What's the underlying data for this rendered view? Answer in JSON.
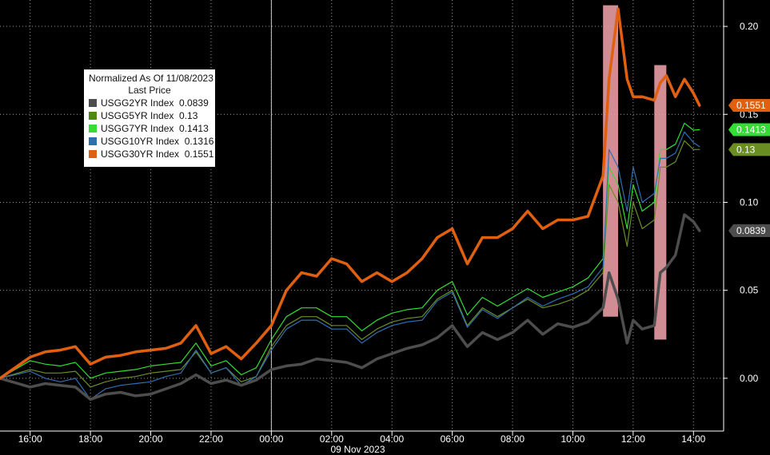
{
  "chart_data": {
    "type": "line",
    "xlabel": "09 Nov 2023",
    "x_ticks": [
      "16:00",
      "18:00",
      "20:00",
      "22:00",
      "00:00",
      "02:00",
      "04:00",
      "06:00",
      "08:00",
      "10:00",
      "12:00",
      "14:00"
    ],
    "y_ticks": [
      "0.00",
      "0.05",
      "0.10",
      "0.15",
      "0.20"
    ],
    "ylim": [
      -0.03,
      0.215
    ],
    "x_unit": "hours since 16:00 on 08 Nov 2023",
    "xlim": [
      -1.0,
      23.0
    ],
    "grid": "dotted",
    "legend": {
      "title": "Normalized As Of 11/08/2023",
      "subtitle": "Last Price",
      "position": "top-left",
      "entries": [
        {
          "name": "USGG2YR Index",
          "value": "0.0839",
          "color": "#4d4d4d"
        },
        {
          "name": "USGG5YR Index",
          "value": "0.13",
          "color": "#4e8a0e"
        },
        {
          "name": "USGG7YR Index",
          "value": "0.1413",
          "color": "#33dd33"
        },
        {
          "name": "USGG10YR Index",
          "value": "0.1316",
          "color": "#2f6fb0"
        },
        {
          "name": "USGG30YR Index",
          "value": "0.1551",
          "color": "#e06010"
        }
      ]
    },
    "series": [
      {
        "name": "USGG2YR Index",
        "color": "#4d4d4d",
        "width": 3.5,
        "label": "0.0839",
        "label_value": 0.0839,
        "points": [
          [
            -1.0,
            0.0
          ],
          [
            0.0,
            -0.005
          ],
          [
            0.5,
            -0.003
          ],
          [
            1.0,
            -0.004
          ],
          [
            1.5,
            -0.005
          ],
          [
            2.0,
            -0.012
          ],
          [
            2.5,
            -0.009
          ],
          [
            3.0,
            -0.008
          ],
          [
            3.5,
            -0.01
          ],
          [
            4.0,
            -0.009
          ],
          [
            4.5,
            -0.006
          ],
          [
            5.0,
            -0.003
          ],
          [
            5.5,
            0.002
          ],
          [
            6.0,
            -0.003
          ],
          [
            6.5,
            -0.001
          ],
          [
            7.0,
            -0.004
          ],
          [
            7.5,
            -0.001
          ],
          [
            8.0,
            0.005
          ],
          [
            8.5,
            0.007
          ],
          [
            9.0,
            0.008
          ],
          [
            9.5,
            0.011
          ],
          [
            10.0,
            0.01
          ],
          [
            10.5,
            0.009
          ],
          [
            11.0,
            0.006
          ],
          [
            11.5,
            0.011
          ],
          [
            12.0,
            0.014
          ],
          [
            12.5,
            0.017
          ],
          [
            13.0,
            0.019
          ],
          [
            13.5,
            0.023
          ],
          [
            14.0,
            0.03
          ],
          [
            14.5,
            0.018
          ],
          [
            15.0,
            0.026
          ],
          [
            15.5,
            0.022
          ],
          [
            16.0,
            0.026
          ],
          [
            16.5,
            0.033
          ],
          [
            17.0,
            0.025
          ],
          [
            17.5,
            0.031
          ],
          [
            18.0,
            0.029
          ],
          [
            18.5,
            0.032
          ],
          [
            19.0,
            0.04
          ],
          [
            19.2,
            0.06
          ],
          [
            19.5,
            0.045
          ],
          [
            19.8,
            0.02
          ],
          [
            20.0,
            0.033
          ],
          [
            20.3,
            0.028
          ],
          [
            20.7,
            0.03
          ],
          [
            20.9,
            0.06
          ],
          [
            21.1,
            0.063
          ],
          [
            21.4,
            0.07
          ],
          [
            21.7,
            0.093
          ],
          [
            22.0,
            0.089
          ],
          [
            22.2,
            0.0839
          ]
        ]
      },
      {
        "name": "USGG5YR Index",
        "color": "#6b8e23",
        "width": 1.2,
        "label": "0.13",
        "label_value": 0.13,
        "points": [
          [
            -1.0,
            0.0
          ],
          [
            0.0,
            0.005
          ],
          [
            0.5,
            0.003
          ],
          [
            1.0,
            0.003
          ],
          [
            1.5,
            0.004
          ],
          [
            2.0,
            -0.005
          ],
          [
            2.5,
            -0.002
          ],
          [
            3.0,
            0.0
          ],
          [
            3.5,
            0.001
          ],
          [
            4.0,
            0.003
          ],
          [
            4.5,
            0.004
          ],
          [
            5.0,
            0.005
          ],
          [
            5.5,
            0.015
          ],
          [
            6.0,
            0.003
          ],
          [
            6.5,
            0.006
          ],
          [
            7.0,
            -0.002
          ],
          [
            7.5,
            0.001
          ],
          [
            8.0,
            0.018
          ],
          [
            8.5,
            0.03
          ],
          [
            9.0,
            0.035
          ],
          [
            9.5,
            0.035
          ],
          [
            10.0,
            0.03
          ],
          [
            10.5,
            0.03
          ],
          [
            11.0,
            0.022
          ],
          [
            11.5,
            0.028
          ],
          [
            12.0,
            0.032
          ],
          [
            12.5,
            0.034
          ],
          [
            13.0,
            0.035
          ],
          [
            13.5,
            0.045
          ],
          [
            14.0,
            0.05
          ],
          [
            14.5,
            0.03
          ],
          [
            15.0,
            0.04
          ],
          [
            15.5,
            0.035
          ],
          [
            16.0,
            0.04
          ],
          [
            16.5,
            0.045
          ],
          [
            17.0,
            0.04
          ],
          [
            17.5,
            0.042
          ],
          [
            18.0,
            0.045
          ],
          [
            18.5,
            0.05
          ],
          [
            19.0,
            0.06
          ],
          [
            19.2,
            0.11
          ],
          [
            19.5,
            0.1
          ],
          [
            19.8,
            0.075
          ],
          [
            20.0,
            0.1
          ],
          [
            20.3,
            0.085
          ],
          [
            20.7,
            0.09
          ],
          [
            20.9,
            0.12
          ],
          [
            21.1,
            0.12
          ],
          [
            21.4,
            0.123
          ],
          [
            21.7,
            0.135
          ],
          [
            22.0,
            0.13
          ],
          [
            22.2,
            0.13
          ]
        ]
      },
      {
        "name": "USGG7YR Index",
        "color": "#33dd33",
        "width": 1.2,
        "label": "0.1413",
        "label_value": 0.1413,
        "points": [
          [
            -1.0,
            0.0
          ],
          [
            0.0,
            0.01
          ],
          [
            0.5,
            0.008
          ],
          [
            1.0,
            0.007
          ],
          [
            1.5,
            0.009
          ],
          [
            2.0,
            0.0
          ],
          [
            2.5,
            0.003
          ],
          [
            3.0,
            0.004
          ],
          [
            3.5,
            0.005
          ],
          [
            4.0,
            0.007
          ],
          [
            4.5,
            0.008
          ],
          [
            5.0,
            0.009
          ],
          [
            5.5,
            0.02
          ],
          [
            6.0,
            0.007
          ],
          [
            6.5,
            0.01
          ],
          [
            7.0,
            0.002
          ],
          [
            7.5,
            0.006
          ],
          [
            8.0,
            0.022
          ],
          [
            8.5,
            0.035
          ],
          [
            9.0,
            0.04
          ],
          [
            9.5,
            0.04
          ],
          [
            10.0,
            0.035
          ],
          [
            10.5,
            0.035
          ],
          [
            11.0,
            0.027
          ],
          [
            11.5,
            0.033
          ],
          [
            12.0,
            0.037
          ],
          [
            12.5,
            0.039
          ],
          [
            13.0,
            0.04
          ],
          [
            13.5,
            0.05
          ],
          [
            14.0,
            0.055
          ],
          [
            14.5,
            0.036
          ],
          [
            15.0,
            0.046
          ],
          [
            15.5,
            0.041
          ],
          [
            16.0,
            0.046
          ],
          [
            16.5,
            0.051
          ],
          [
            17.0,
            0.046
          ],
          [
            17.5,
            0.049
          ],
          [
            18.0,
            0.052
          ],
          [
            18.5,
            0.057
          ],
          [
            19.0,
            0.068
          ],
          [
            19.2,
            0.12
          ],
          [
            19.5,
            0.11
          ],
          [
            19.8,
            0.085
          ],
          [
            20.0,
            0.11
          ],
          [
            20.3,
            0.095
          ],
          [
            20.7,
            0.1
          ],
          [
            20.9,
            0.13
          ],
          [
            21.1,
            0.13
          ],
          [
            21.4,
            0.133
          ],
          [
            21.7,
            0.145
          ],
          [
            22.0,
            0.141
          ],
          [
            22.2,
            0.1413
          ]
        ]
      },
      {
        "name": "USGG10YR Index",
        "color": "#2f6fb0",
        "width": 1.2,
        "label": "",
        "label_value": 0.1316,
        "points": [
          [
            -1.0,
            0.0
          ],
          [
            0.0,
            0.004
          ],
          [
            0.5,
            0.0
          ],
          [
            1.0,
            -0.002
          ],
          [
            1.5,
            0.0
          ],
          [
            2.0,
            -0.012
          ],
          [
            2.5,
            -0.006
          ],
          [
            3.0,
            -0.004
          ],
          [
            3.5,
            -0.003
          ],
          [
            4.0,
            -0.002
          ],
          [
            4.5,
            0.001
          ],
          [
            5.0,
            0.003
          ],
          [
            5.5,
            0.016
          ],
          [
            6.0,
            0.003
          ],
          [
            6.5,
            0.006
          ],
          [
            7.0,
            -0.004
          ],
          [
            7.5,
            0.001
          ],
          [
            8.0,
            0.016
          ],
          [
            8.5,
            0.028
          ],
          [
            9.0,
            0.033
          ],
          [
            9.5,
            0.033
          ],
          [
            10.0,
            0.028
          ],
          [
            10.5,
            0.028
          ],
          [
            11.0,
            0.02
          ],
          [
            11.5,
            0.026
          ],
          [
            12.0,
            0.03
          ],
          [
            12.5,
            0.032
          ],
          [
            13.0,
            0.033
          ],
          [
            13.5,
            0.044
          ],
          [
            14.0,
            0.049
          ],
          [
            14.5,
            0.029
          ],
          [
            15.0,
            0.039
          ],
          [
            15.5,
            0.034
          ],
          [
            16.0,
            0.04
          ],
          [
            16.5,
            0.046
          ],
          [
            17.0,
            0.041
          ],
          [
            17.5,
            0.045
          ],
          [
            18.0,
            0.048
          ],
          [
            18.5,
            0.052
          ],
          [
            19.0,
            0.063
          ],
          [
            19.2,
            0.13
          ],
          [
            19.5,
            0.12
          ],
          [
            19.8,
            0.095
          ],
          [
            20.0,
            0.12
          ],
          [
            20.3,
            0.1
          ],
          [
            20.7,
            0.105
          ],
          [
            20.9,
            0.125
          ],
          [
            21.1,
            0.125
          ],
          [
            21.4,
            0.128
          ],
          [
            21.7,
            0.14
          ],
          [
            22.0,
            0.134
          ],
          [
            22.2,
            0.1316
          ]
        ]
      },
      {
        "name": "USGG30YR Index",
        "color": "#e06010",
        "width": 3.5,
        "label": "0.1551",
        "label_value": 0.1551,
        "points": [
          [
            -1.0,
            0.0
          ],
          [
            0.0,
            0.012
          ],
          [
            0.5,
            0.015
          ],
          [
            1.0,
            0.016
          ],
          [
            1.5,
            0.018
          ],
          [
            2.0,
            0.008
          ],
          [
            2.5,
            0.012
          ],
          [
            3.0,
            0.013
          ],
          [
            3.5,
            0.015
          ],
          [
            4.0,
            0.016
          ],
          [
            4.5,
            0.017
          ],
          [
            5.0,
            0.02
          ],
          [
            5.5,
            0.03
          ],
          [
            6.0,
            0.014
          ],
          [
            6.5,
            0.018
          ],
          [
            7.0,
            0.011
          ],
          [
            7.5,
            0.02
          ],
          [
            8.0,
            0.03
          ],
          [
            8.5,
            0.05
          ],
          [
            9.0,
            0.06
          ],
          [
            9.5,
            0.058
          ],
          [
            10.0,
            0.068
          ],
          [
            10.5,
            0.065
          ],
          [
            11.0,
            0.055
          ],
          [
            11.5,
            0.06
          ],
          [
            12.0,
            0.055
          ],
          [
            12.5,
            0.06
          ],
          [
            13.0,
            0.068
          ],
          [
            13.5,
            0.08
          ],
          [
            14.0,
            0.085
          ],
          [
            14.5,
            0.065
          ],
          [
            15.0,
            0.08
          ],
          [
            15.5,
            0.08
          ],
          [
            16.0,
            0.085
          ],
          [
            16.5,
            0.095
          ],
          [
            17.0,
            0.085
          ],
          [
            17.5,
            0.09
          ],
          [
            18.0,
            0.09
          ],
          [
            18.5,
            0.092
          ],
          [
            19.0,
            0.115
          ],
          [
            19.2,
            0.17
          ],
          [
            19.5,
            0.21
          ],
          [
            19.8,
            0.17
          ],
          [
            20.0,
            0.16
          ],
          [
            20.3,
            0.16
          ],
          [
            20.7,
            0.158
          ],
          [
            20.9,
            0.168
          ],
          [
            21.1,
            0.172
          ],
          [
            21.4,
            0.16
          ],
          [
            21.7,
            0.17
          ],
          [
            22.0,
            0.162
          ],
          [
            22.2,
            0.1551
          ]
        ]
      }
    ],
    "highlights": [
      {
        "x": [
          19.0,
          19.5
        ],
        "y": [
          0.035,
          0.212
        ]
      },
      {
        "x": [
          20.7,
          21.1
        ],
        "y": [
          0.022,
          0.178
        ]
      }
    ]
  }
}
